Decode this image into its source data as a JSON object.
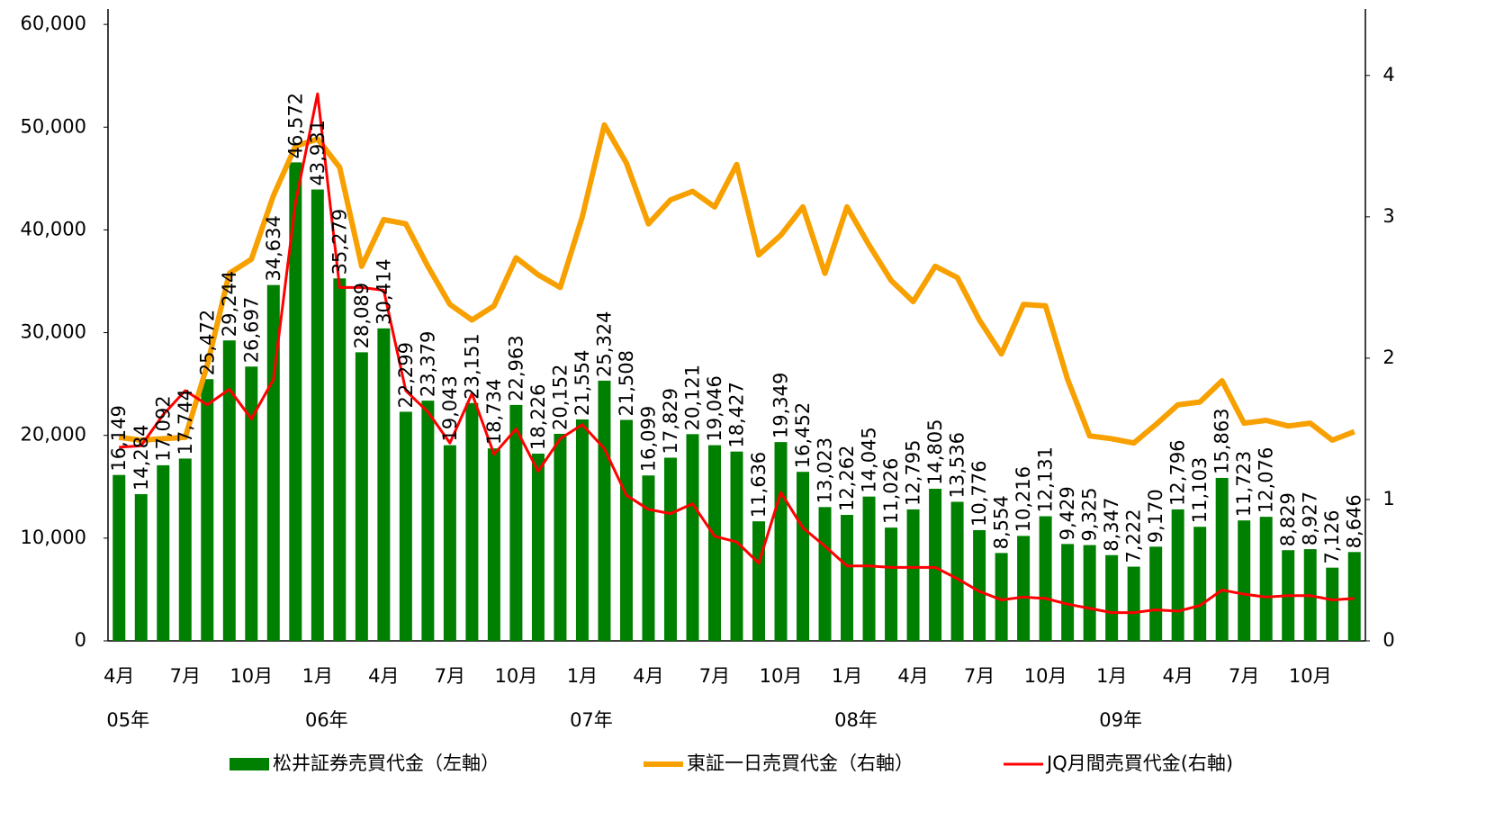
{
  "chart_data": {
    "type": "bar_line",
    "categories": [
      "4月",
      null,
      null,
      "7月",
      null,
      null,
      "10月",
      null,
      null,
      "1月",
      null,
      null,
      "4月",
      null,
      null,
      "7月",
      null,
      null,
      "10月",
      null,
      null,
      "1月",
      null,
      null,
      "4月",
      null,
      null,
      "7月",
      null,
      null,
      "10月",
      null,
      null,
      "1月",
      null,
      null,
      "4月",
      null,
      null,
      "7月",
      null,
      null,
      "10月",
      null,
      null,
      "1月",
      null,
      null,
      "4月",
      null,
      null,
      "7月",
      null,
      null,
      "10月",
      null,
      null
    ],
    "years": [
      "05年",
      null,
      null,
      null,
      null,
      null,
      null,
      null,
      null,
      "06年",
      null,
      null,
      null,
      null,
      null,
      null,
      null,
      null,
      null,
      null,
      null,
      "07年",
      null,
      null,
      null,
      null,
      null,
      null,
      null,
      null,
      null,
      null,
      null,
      "08年",
      null,
      null,
      null,
      null,
      null,
      null,
      null,
      null,
      null,
      null,
      null,
      "09年",
      null,
      null,
      null,
      null,
      null,
      null,
      null,
      null,
      null,
      null,
      null
    ],
    "series": [
      {
        "name": "松井証券売買代金（左軸）",
        "color": "#008000",
        "kind": "bar",
        "values": [
          16149,
          14284,
          17092,
          17744,
          25472,
          29244,
          26697,
          34634,
          46572,
          43931,
          35279,
          28089,
          30414,
          22299,
          23379,
          19043,
          23151,
          18734,
          22963,
          18226,
          20152,
          21554,
          25324,
          21508,
          16099,
          17829,
          20121,
          19046,
          18427,
          11636,
          19349,
          16452,
          13023,
          12262,
          14045,
          11026,
          12795,
          14805,
          13536,
          10776,
          8554,
          10216,
          12131,
          9429,
          9325,
          8347,
          7222,
          9170,
          12796,
          11103,
          15863,
          11723,
          12076,
          8829,
          8927,
          7126,
          8646
        ],
        "value_labels": [
          "16,149",
          "14,284",
          "17,092",
          "17,744",
          "25,472",
          "29,244",
          "26,697",
          "34,634",
          "46,572",
          "43,931",
          "35,279",
          "28,089",
          "30,414",
          "22,299",
          "23,379",
          "19,043",
          "23,151",
          "18,734",
          "22,963",
          "18,226",
          "20,152",
          "21,554",
          "25,324",
          "21,508",
          "16,099",
          "17,829",
          "20,121",
          "19,046",
          "18,427",
          "11,636",
          "19,349",
          "16,452",
          "13,023",
          "12,262",
          "14,045",
          "11,026",
          "12,795",
          "14,805",
          "13,536",
          "10,776",
          "8,554",
          "10,216",
          "12,131",
          "9,429",
          "9,325",
          "8,347",
          "7,222",
          "9,170",
          "12,796",
          "11,103",
          "15,863",
          "11,723",
          "12,076",
          "8,829",
          "8,927",
          "7,126",
          "8,646"
        ]
      },
      {
        "name": "東証一日売買代金（右軸）",
        "color": "#f7a000",
        "kind": "line",
        "axis": "y2",
        "width": 6,
        "values": [
          1.44,
          1.42,
          1.43,
          1.44,
          1.95,
          2.6,
          2.7,
          3.15,
          3.5,
          3.55,
          3.35,
          2.65,
          2.98,
          2.95,
          2.65,
          2.38,
          2.27,
          2.37,
          2.71,
          2.59,
          2.5,
          3.0,
          3.65,
          3.38,
          2.95,
          3.12,
          3.18,
          3.07,
          3.37,
          2.73,
          2.87,
          3.07,
          2.6,
          3.07,
          2.8,
          2.55,
          2.4,
          2.65,
          2.57,
          2.27,
          2.03,
          2.38,
          2.37,
          1.85,
          1.45,
          1.43,
          1.4,
          1.53,
          1.67,
          1.69,
          1.84,
          1.54,
          1.56,
          1.52,
          1.54,
          1.42,
          1.48
        ]
      },
      {
        "name": "JQ月間売買代金(右軸)",
        "color": "#ff0000",
        "kind": "line",
        "axis": "y2",
        "width": 3,
        "values": [
          1.37,
          1.38,
          1.6,
          1.77,
          1.67,
          1.78,
          1.57,
          1.85,
          3.1,
          3.87,
          2.5,
          2.5,
          2.48,
          1.77,
          1.62,
          1.4,
          1.75,
          1.32,
          1.5,
          1.2,
          1.43,
          1.53,
          1.36,
          1.03,
          0.93,
          0.9,
          0.97,
          0.74,
          0.7,
          0.55,
          1.05,
          0.8,
          0.67,
          0.53,
          0.53,
          0.52,
          0.52,
          0.52,
          0.44,
          0.35,
          0.29,
          0.31,
          0.3,
          0.26,
          0.23,
          0.2,
          0.2,
          0.22,
          0.21,
          0.25,
          0.36,
          0.33,
          0.31,
          0.32,
          0.32,
          0.29,
          0.3
        ]
      }
    ],
    "ylim": [
      0,
      61500
    ],
    "yticks": [
      0,
      {
        "value": 10000,
        "label": "10,000"
      },
      {
        "value": 20000,
        "label": "20,000"
      },
      {
        "value": 30000,
        "label": "30,000"
      },
      {
        "value": 40000,
        "label": "40,000"
      },
      {
        "value": 50000,
        "label": "50,000"
      },
      {
        "value": 60000,
        "label": "60,000"
      }
    ],
    "y2lim": [
      0,
      4.47
    ],
    "y2ticks": [
      0,
      1,
      2,
      3,
      4
    ]
  }
}
